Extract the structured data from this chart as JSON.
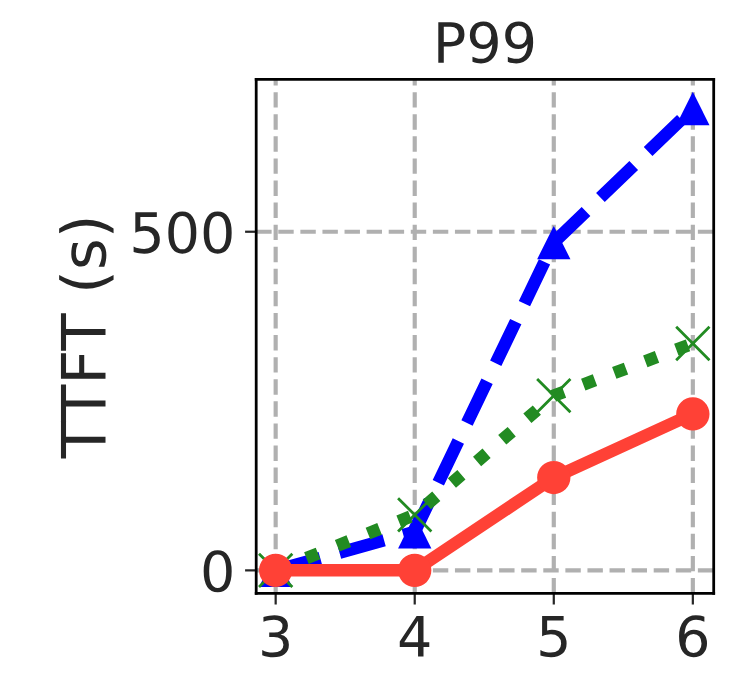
{
  "chart_data": {
    "type": "line",
    "title": "P99",
    "ylabel": "TTFT (s)",
    "x": [
      3,
      4,
      5,
      6
    ],
    "series": [
      {
        "color": "#0000ff",
        "values": [
          0,
          57,
          484,
          682
        ],
        "marker": "triangle",
        "line_style": "dashed"
      },
      {
        "color": "#228b22",
        "values": [
          0,
          82,
          258,
          335
        ],
        "marker": "cross",
        "line_style": "dotted"
      },
      {
        "color": "#ff4136",
        "values": [
          0,
          0,
          137,
          231
        ],
        "marker": "circle",
        "line_style": "solid"
      }
    ],
    "xlim": [
      2.86,
      6.15
    ],
    "ylim": [
      -34,
      725
    ],
    "xticks": [
      3,
      4,
      5,
      6
    ],
    "yticks": [
      0,
      500
    ],
    "grid": true
  }
}
